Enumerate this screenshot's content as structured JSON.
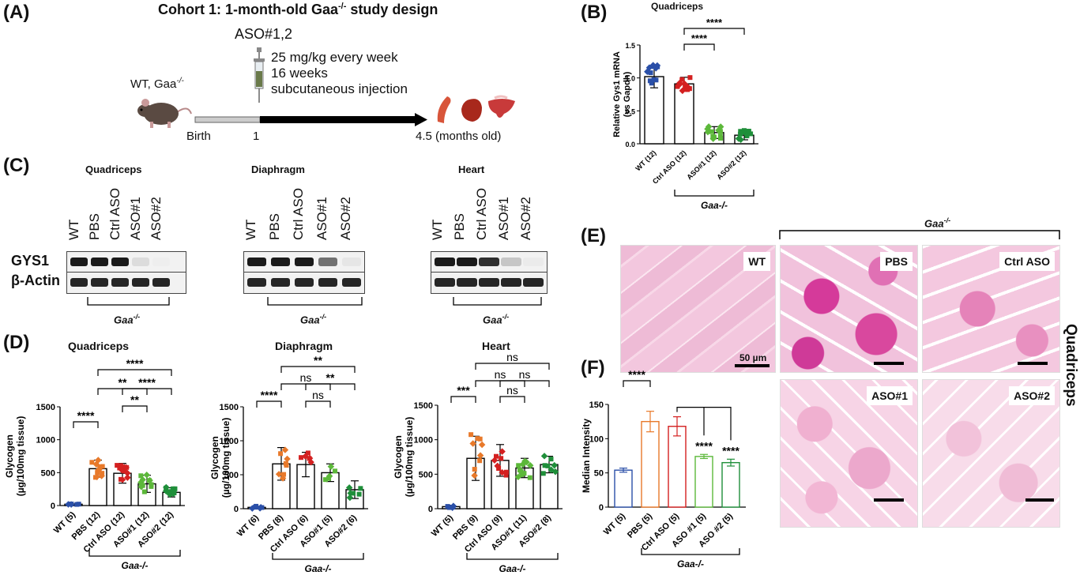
{
  "panels": {
    "A": "(A)",
    "B": "(B)",
    "C": "(C)",
    "D": "(D)",
    "E": "(E)",
    "F": "(F)"
  },
  "panelA": {
    "title": "Cohort 1: 1-month-old Gaa",
    "title_sup": "-/-",
    "title_tail": " study design",
    "treatment": "ASO#1,2",
    "dose_lines": [
      "25 mg/kg every week",
      "16 weeks",
      "subcutaneous injection"
    ],
    "mouse_label": "WT, Gaa",
    "mouse_sup": "-/-",
    "timeline": {
      "birth": "Birth",
      "one": "1",
      "end": "4.5 (months old)"
    }
  },
  "panelB": {
    "title": "Quadriceps",
    "genotype": "Gaa",
    "genotype_sup": "-/-"
  },
  "panelC": {
    "tissues": [
      "Quadriceps",
      "Diaphragm",
      "Heart"
    ],
    "lanes": [
      "WT",
      "PBS",
      "Ctrl ASO",
      "ASO#1",
      "ASO#2"
    ],
    "rows": [
      "GYS1",
      "β-Actin"
    ],
    "genotype": "Gaa",
    "genotype_sup": "-/-"
  },
  "panelE": {
    "genotype": "Gaa",
    "genotype_sup": "-/-",
    "labels": [
      "WT",
      "PBS",
      "Ctrl ASO",
      "ASO#1",
      "ASO#2"
    ],
    "side_label": "Quadriceps",
    "scale": "50 µm"
  },
  "colors": {
    "wt": "#2a4fa8",
    "pbs": "#e8792a",
    "ctrl": "#d42020",
    "aso1": "#5cb83a",
    "aso2": "#1f8f3a"
  },
  "chart_data": [
    {
      "id": "B",
      "type": "bar",
      "title": "Quadriceps",
      "ylabel": "Relative Gys1 mRNA\n(vs Gapdh)",
      "ylim": [
        0,
        1.5
      ],
      "yticks": [
        0,
        0.5,
        1.0,
        1.5
      ],
      "categories": [
        "WT (12)",
        "Ctrl ASO (12)",
        "ASO#1 (12)",
        "ASO#2 (12)"
      ],
      "values": [
        1.02,
        0.91,
        0.17,
        0.13
      ],
      "errors": [
        0.17,
        0.1,
        0.09,
        0.07
      ],
      "colors": [
        "#2a4fa8",
        "#d42020",
        "#5cb83a",
        "#1f8f3a"
      ],
      "brackets": [
        {
          "from": 1,
          "to": 2,
          "label": "****"
        },
        {
          "from": 1,
          "to": 3,
          "label": "****"
        }
      ],
      "group_label": "Gaa-/-",
      "group_range": [
        1,
        3
      ]
    },
    {
      "id": "D1",
      "type": "bar",
      "title": "Quadriceps",
      "ylabel": "Glycogen\n(µg/100mg tissue)",
      "ylim": [
        0,
        1500
      ],
      "yticks": [
        0,
        500,
        1000,
        1500
      ],
      "categories": [
        "WT (5)",
        "PBS (12)",
        "Ctrl ASO (12)",
        "ASO#1 (12)",
        "ASO#2 (12)"
      ],
      "values": [
        20,
        560,
        490,
        330,
        200
      ],
      "errors": [
        5,
        130,
        150,
        130,
        70
      ],
      "colors": [
        "#2a4fa8",
        "#e8792a",
        "#d42020",
        "#5cb83a",
        "#1f8f3a"
      ],
      "brackets": [
        {
          "from": 0,
          "to": 1,
          "label": "****"
        },
        {
          "from": 1,
          "to": 3,
          "label": "**"
        },
        {
          "from": 1,
          "to": 4,
          "label": "****"
        },
        {
          "from": 2,
          "to": 3,
          "label": "**"
        },
        {
          "from": 2,
          "to": 4,
          "label": "****"
        }
      ],
      "group_label": "Gaa-/-",
      "group_range": [
        1,
        4
      ]
    },
    {
      "id": "D2",
      "type": "bar",
      "title": "Diaphragm",
      "ylabel": "Glycogen\n(µg/100mg tissue)",
      "ylim": [
        0,
        1500
      ],
      "yticks": [
        0,
        500,
        1000,
        1500
      ],
      "categories": [
        "WT (6)",
        "PBS (8)",
        "Ctrl ASO (6)",
        "ASO#1 (5)",
        "ASO#2 (6)"
      ],
      "values": [
        20,
        660,
        650,
        530,
        280
      ],
      "errors": [
        15,
        240,
        180,
        130,
        130
      ],
      "colors": [
        "#2a4fa8",
        "#e8792a",
        "#d42020",
        "#5cb83a",
        "#1f8f3a"
      ],
      "brackets": [
        {
          "from": 0,
          "to": 1,
          "label": "****"
        },
        {
          "from": 1,
          "to": 3,
          "label": "ns"
        },
        {
          "from": 1,
          "to": 4,
          "label": "**"
        },
        {
          "from": 2,
          "to": 3,
          "label": "ns"
        },
        {
          "from": 2,
          "to": 4,
          "label": "**"
        }
      ],
      "group_label": "Gaa-/-",
      "group_range": [
        1,
        4
      ]
    },
    {
      "id": "D3",
      "type": "bar",
      "title": "Heart",
      "ylabel": "Glycogen\n(µg/100mg tissue)",
      "ylim": [
        0,
        1500
      ],
      "yticks": [
        0,
        500,
        1000,
        1500
      ],
      "categories": [
        "WT (5)",
        "PBS (9)",
        "Ctrl ASO (9)",
        "ASO#1 (11)",
        "ASO#2 (8)"
      ],
      "values": [
        30,
        730,
        700,
        590,
        640
      ],
      "errors": [
        20,
        320,
        230,
        140,
        120
      ],
      "colors": [
        "#2a4fa8",
        "#e8792a",
        "#d42020",
        "#5cb83a",
        "#1f8f3a"
      ],
      "brackets": [
        {
          "from": 0,
          "to": 1,
          "label": "***"
        },
        {
          "from": 1,
          "to": 3,
          "label": "ns"
        },
        {
          "from": 1,
          "to": 4,
          "label": "ns"
        },
        {
          "from": 2,
          "to": 3,
          "label": "ns"
        },
        {
          "from": 2,
          "to": 4,
          "label": "ns"
        }
      ],
      "group_label": "Gaa-/-",
      "group_range": [
        1,
        4
      ]
    },
    {
      "id": "F",
      "type": "bar",
      "title": "",
      "ylabel": "Median Intensity",
      "ylim": [
        0,
        150
      ],
      "yticks": [
        0,
        50,
        100,
        150
      ],
      "categories": [
        "WT (5)",
        "PBS (5)",
        "Ctrl ASO (5)",
        "ASO #1 (5)",
        "ASO #2 (5)"
      ],
      "values": [
        54,
        125,
        118,
        74,
        65
      ],
      "errors": [
        3,
        15,
        14,
        3,
        5
      ],
      "colors": [
        "#2a4fa8",
        "#e8792a",
        "#d42020",
        "#5cb83a",
        "#1f8f3a"
      ],
      "brackets": [
        {
          "from": 0,
          "to": 1,
          "label": "****"
        }
      ],
      "extra_stars": [
        {
          "bar": 3,
          "label": "****"
        },
        {
          "bar": 4,
          "label": "****"
        }
      ],
      "group_label": "Gaa-/-",
      "group_range": [
        1,
        4
      ],
      "hollow": true
    }
  ]
}
